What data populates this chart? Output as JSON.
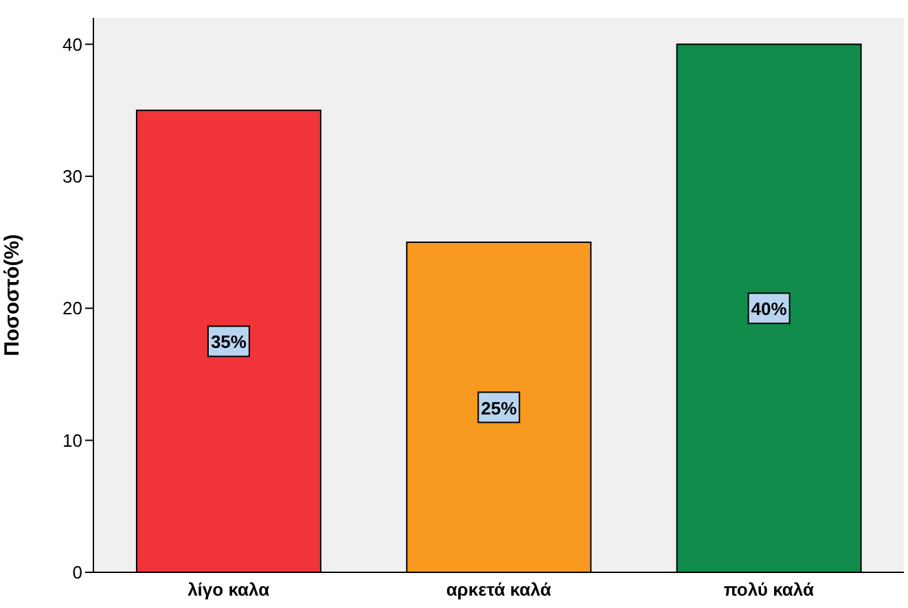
{
  "chart_data": {
    "type": "bar",
    "ylabel": "Ποσοστό(%)",
    "categories": [
      "λίγο καλα",
      "αρκετά καλά",
      "πολύ καλά"
    ],
    "values": [
      35,
      25,
      40
    ],
    "colors": [
      "#f0343a",
      "#f89a1f",
      "#118c4a"
    ],
    "value_labels": [
      "35%",
      "25%",
      "40%"
    ],
    "ylim": [
      0,
      42
    ],
    "yticks": [
      0,
      10,
      20,
      30,
      40
    ],
    "grid": false,
    "legend": false
  }
}
